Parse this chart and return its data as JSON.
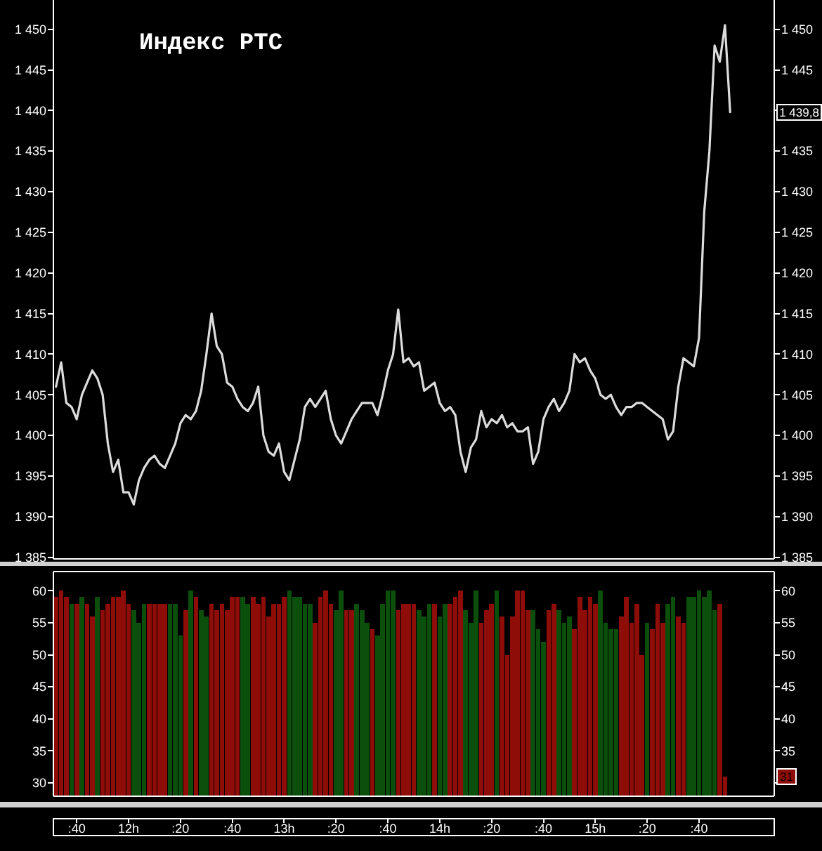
{
  "chart_data": [
    {
      "type": "line",
      "title": "Индекс РТС",
      "color": "#dcdcdc",
      "categories": [
        null,
        null,
        null,
        null,
        null,
        null,
        null,
        null,
        null,
        null,
        null,
        null,
        null,
        null,
        null,
        null,
        null,
        null,
        null,
        null,
        null,
        null,
        null,
        null,
        null,
        null,
        null,
        null,
        null,
        null,
        null,
        null,
        null,
        null,
        null,
        null,
        null,
        null,
        null,
        null,
        null,
        null,
        null,
        null,
        null,
        null,
        null,
        null,
        null,
        null,
        null,
        null,
        null,
        null,
        null,
        null,
        null,
        null,
        null,
        null,
        null,
        null,
        null,
        null,
        null,
        null,
        null,
        null,
        null,
        null,
        null,
        null,
        null,
        null,
        null,
        null,
        null,
        null,
        null,
        null,
        null,
        null,
        null,
        null,
        null,
        null,
        null,
        null,
        null,
        null,
        null,
        null,
        null,
        null,
        null,
        null,
        null,
        null,
        null,
        null,
        null,
        null,
        null,
        null,
        null,
        null,
        null,
        null,
        null,
        null,
        null,
        null,
        null,
        null,
        null,
        null,
        null,
        null,
        null,
        null,
        null,
        null,
        null,
        null,
        null,
        null,
        null,
        null,
        null,
        null,
        null,
        null,
        null,
        null,
        null,
        null,
        null,
        null,
        null
      ],
      "values": [
        1406,
        1409,
        1404,
        1403.5,
        1402,
        1405,
        1406.5,
        1408,
        1407,
        1405,
        1399,
        1395.5,
        1397,
        1393,
        1393,
        1391.5,
        1394.5,
        1396,
        1397,
        1397.5,
        1396.5,
        1396,
        1397.5,
        1399,
        1401.5,
        1402.5,
        1402,
        1403,
        1405.5,
        1410,
        1415,
        1411,
        1410,
        1406.5,
        1406,
        1404.5,
        1403.5,
        1403,
        1404,
        1406,
        1400,
        1398,
        1397.5,
        1399,
        1395.5,
        1394.5,
        1397,
        1399.5,
        1403.5,
        1404.5,
        1403.5,
        1404.5,
        1405.5,
        1402,
        1400,
        1399,
        1400.5,
        1402,
        1403,
        1404,
        1404,
        1404,
        1402.5,
        1405,
        1408,
        1410,
        1415.5,
        1409,
        1409.5,
        1408.5,
        1409,
        1405.5,
        1406,
        1406.5,
        1404,
        1403,
        1403.5,
        1402.5,
        1398,
        1395.5,
        1398.5,
        1399.5,
        1403,
        1401,
        1402,
        1401.5,
        1402.5,
        1401,
        1401.5,
        1400.5,
        1400.5,
        1401,
        1396.5,
        1398,
        1402,
        1403.5,
        1404.5,
        1403,
        1404,
        1405.5,
        1410,
        1409,
        1409.5,
        1408,
        1407,
        1405,
        1404.5,
        1405,
        1403.5,
        1402.5,
        1403.5,
        1403.5,
        1404,
        1404,
        1403.5,
        1403,
        1402.5,
        1402,
        1399.5,
        1400.5,
        1406,
        1409.5,
        1409,
        1408.5,
        1412,
        1427.5,
        1435,
        1448,
        1446,
        1450.5,
        1439.8,
        null,
        null,
        null,
        null,
        null,
        null,
        null,
        null
      ],
      "ylim": [
        1384.8,
        1453.6
      ],
      "yticks": [
        {
          "value": 1385,
          "label": "1 385"
        },
        {
          "value": 1390,
          "label": "1 390"
        },
        {
          "value": 1395,
          "label": "1 395"
        },
        {
          "value": 1400,
          "label": "1 400"
        },
        {
          "value": 1405,
          "label": "1 405"
        },
        {
          "value": 1410,
          "label": "1 410"
        },
        {
          "value": 1415,
          "label": "1 415"
        },
        {
          "value": 1420,
          "label": "1 420"
        },
        {
          "value": 1425,
          "label": "1 425"
        },
        {
          "value": 1430,
          "label": "1 430"
        },
        {
          "value": 1435,
          "label": "1 435"
        },
        {
          "value": 1440,
          "label": "1 440"
        },
        {
          "value": 1445,
          "label": "1 445"
        },
        {
          "value": 1450,
          "label": "1 450"
        }
      ],
      "y2lim": [
        1384.8,
        1453.6
      ],
      "y2ticks": [
        {
          "value": 1385,
          "label": "1 385"
        },
        {
          "value": 1390,
          "label": "1 390"
        },
        {
          "value": 1395,
          "label": "1 395"
        },
        {
          "value": 1400,
          "label": "1 400"
        },
        {
          "value": 1405,
          "label": "1 405"
        },
        {
          "value": 1410,
          "label": "1 410"
        },
        {
          "value": 1415,
          "label": "1 415"
        },
        {
          "value": 1420,
          "label": "1 420"
        },
        {
          "value": 1425,
          "label": "1 425"
        },
        {
          "value": 1430,
          "label": "1 430"
        },
        {
          "value": 1435,
          "label": "1 435"
        },
        {
          "value": 1440,
          "label": null
        },
        {
          "value": 1445,
          "label": "1 445"
        },
        {
          "value": 1450,
          "label": "1 450"
        }
      ],
      "tick_labels": "y",
      "annotations": [
        "1 439,8"
      ]
    },
    {
      "type": "bar",
      "categories": [
        null,
        null,
        null,
        null,
        ":40",
        null,
        null,
        null,
        null,
        null,
        null,
        null,
        null,
        null,
        "12h",
        null,
        null,
        null,
        null,
        null,
        null,
        null,
        null,
        null,
        ":20",
        null,
        null,
        null,
        null,
        null,
        null,
        null,
        null,
        null,
        ":40",
        null,
        null,
        null,
        null,
        null,
        null,
        null,
        null,
        null,
        "13h",
        null,
        null,
        null,
        null,
        null,
        null,
        null,
        null,
        null,
        ":20",
        null,
        null,
        null,
        null,
        null,
        null,
        null,
        null,
        null,
        ":40",
        null,
        null,
        null,
        null,
        null,
        null,
        null,
        null,
        null,
        "14h",
        null,
        null,
        null,
        null,
        null,
        null,
        null,
        null,
        null,
        ":20",
        null,
        null,
        null,
        null,
        null,
        null,
        null,
        null,
        null,
        ":40",
        null,
        null,
        null,
        null,
        null,
        null,
        null,
        null,
        null,
        "15h",
        null,
        null,
        null,
        null,
        null,
        null,
        null,
        null,
        null,
        ":20",
        null,
        null,
        null,
        null,
        null,
        null,
        null,
        null,
        null,
        ":40",
        null,
        null,
        null,
        null,
        null,
        null,
        null,
        null,
        null,
        null,
        null,
        null,
        null,
        null
      ],
      "values": [
        59,
        60,
        59,
        58,
        58,
        59,
        58,
        56,
        59,
        57,
        58,
        59,
        59,
        60,
        58,
        57,
        55,
        58,
        58,
        58,
        58,
        58,
        58,
        58,
        53,
        57,
        60,
        59,
        57,
        56,
        58,
        57,
        58,
        57,
        59,
        59,
        59,
        58,
        59,
        58,
        59,
        56,
        58,
        58,
        59,
        60,
        59,
        59,
        58,
        58,
        55,
        59,
        60,
        58,
        57,
        60,
        57,
        57,
        58,
        57,
        55,
        54,
        53,
        58,
        60,
        60,
        57,
        58,
        58,
        58,
        57,
        56,
        58,
        58,
        56,
        58,
        58,
        59,
        60,
        57,
        55,
        60,
        55,
        57,
        58,
        60,
        56,
        50,
        56,
        60,
        60,
        57,
        57,
        54,
        52,
        57,
        58,
        57,
        55,
        56,
        54,
        59,
        57,
        59,
        58,
        60,
        55,
        54,
        54,
        56,
        59,
        55,
        58,
        50,
        55,
        54,
        58,
        55,
        58,
        59,
        56,
        55,
        59,
        59,
        60,
        59,
        60,
        57,
        58,
        31,
        null,
        null,
        null,
        null,
        null,
        null,
        null,
        null,
        null
      ],
      "colors": [
        "#8e0d08",
        "#8e0d08",
        "#8e0d08",
        "#0c4f0c",
        "#8e0d08",
        "#0c4f0c",
        "#8e0d08",
        "#8e0d08",
        "#0c4f0c",
        "#8e0d08",
        "#8e0d08",
        "#8e0d08",
        "#8e0d08",
        "#8e0d08",
        "#8e0d08",
        "#0c4f0c",
        "#0c4f0c",
        "#0c4f0c",
        "#8e0d08",
        "#8e0d08",
        "#8e0d08",
        "#8e0d08",
        "#0c4f0c",
        "#0c4f0c",
        "#0c4f0c",
        "#8e0d08",
        "#0c4f0c",
        "#8e0d08",
        "#0c4f0c",
        "#0c4f0c",
        "#8e0d08",
        "#8e0d08",
        "#8e0d08",
        "#8e0d08",
        "#8e0d08",
        "#8e0d08",
        "#0c4f0c",
        "#0c4f0c",
        "#8e0d08",
        "#8e0d08",
        "#8e0d08",
        "#8e0d08",
        "#8e0d08",
        "#8e0d08",
        "#8e0d08",
        "#0c4f0c",
        "#0c4f0c",
        "#0c4f0c",
        "#0c4f0c",
        "#0c4f0c",
        "#8e0d08",
        "#8e0d08",
        "#8e0d08",
        "#8e0d08",
        "#0c4f0c",
        "#0c4f0c",
        "#8e0d08",
        "#8e0d08",
        "#0c4f0c",
        "#0c4f0c",
        "#0c4f0c",
        "#8e0d08",
        "#0c4f0c",
        "#0c4f0c",
        "#0c4f0c",
        "#0c4f0c",
        "#8e0d08",
        "#8e0d08",
        "#8e0d08",
        "#8e0d08",
        "#0c4f0c",
        "#0c4f0c",
        "#0c4f0c",
        "#8e0d08",
        "#0c4f0c",
        "#0c4f0c",
        "#8e0d08",
        "#8e0d08",
        "#8e0d08",
        "#0c4f0c",
        "#0c4f0c",
        "#0c4f0c",
        "#8e0d08",
        "#8e0d08",
        "#8e0d08",
        "#0c4f0c",
        "#8e0d08",
        "#8e0d08",
        "#8e0d08",
        "#8e0d08",
        "#8e0d08",
        "#8e0d08",
        "#0c4f0c",
        "#0c4f0c",
        "#0c4f0c",
        "#8e0d08",
        "#8e0d08",
        "#0c4f0c",
        "#0c4f0c",
        "#0c4f0c",
        "#8e0d08",
        "#8e0d08",
        "#8e0d08",
        "#8e0d08",
        "#8e0d08",
        "#0c4f0c",
        "#0c4f0c",
        "#0c4f0c",
        "#0c4f0c",
        "#8e0d08",
        "#8e0d08",
        "#8e0d08",
        "#8e0d08",
        "#8e0d08",
        "#0c4f0c",
        "#8e0d08",
        "#8e0d08",
        "#8e0d08",
        "#0c4f0c",
        "#0c4f0c",
        "#8e0d08",
        "#8e0d08",
        "#0c4f0c",
        "#0c4f0c",
        "#0c4f0c",
        "#0c4f0c",
        "#0c4f0c",
        "#0c4f0c",
        "#8e0d08",
        "#8e0d08",
        null,
        null,
        null,
        null,
        null,
        null,
        null,
        null,
        null
      ],
      "ylim": [
        27.9,
        63
      ],
      "yticks": [
        30,
        35,
        40,
        45,
        50,
        55,
        60
      ],
      "y2lim": [
        27.9,
        63
      ],
      "y2ticks": [
        {
          "value": 30,
          "label": null
        },
        35,
        40,
        45,
        50,
        55,
        60
      ],
      "annotations": [
        "31"
      ]
    }
  ]
}
